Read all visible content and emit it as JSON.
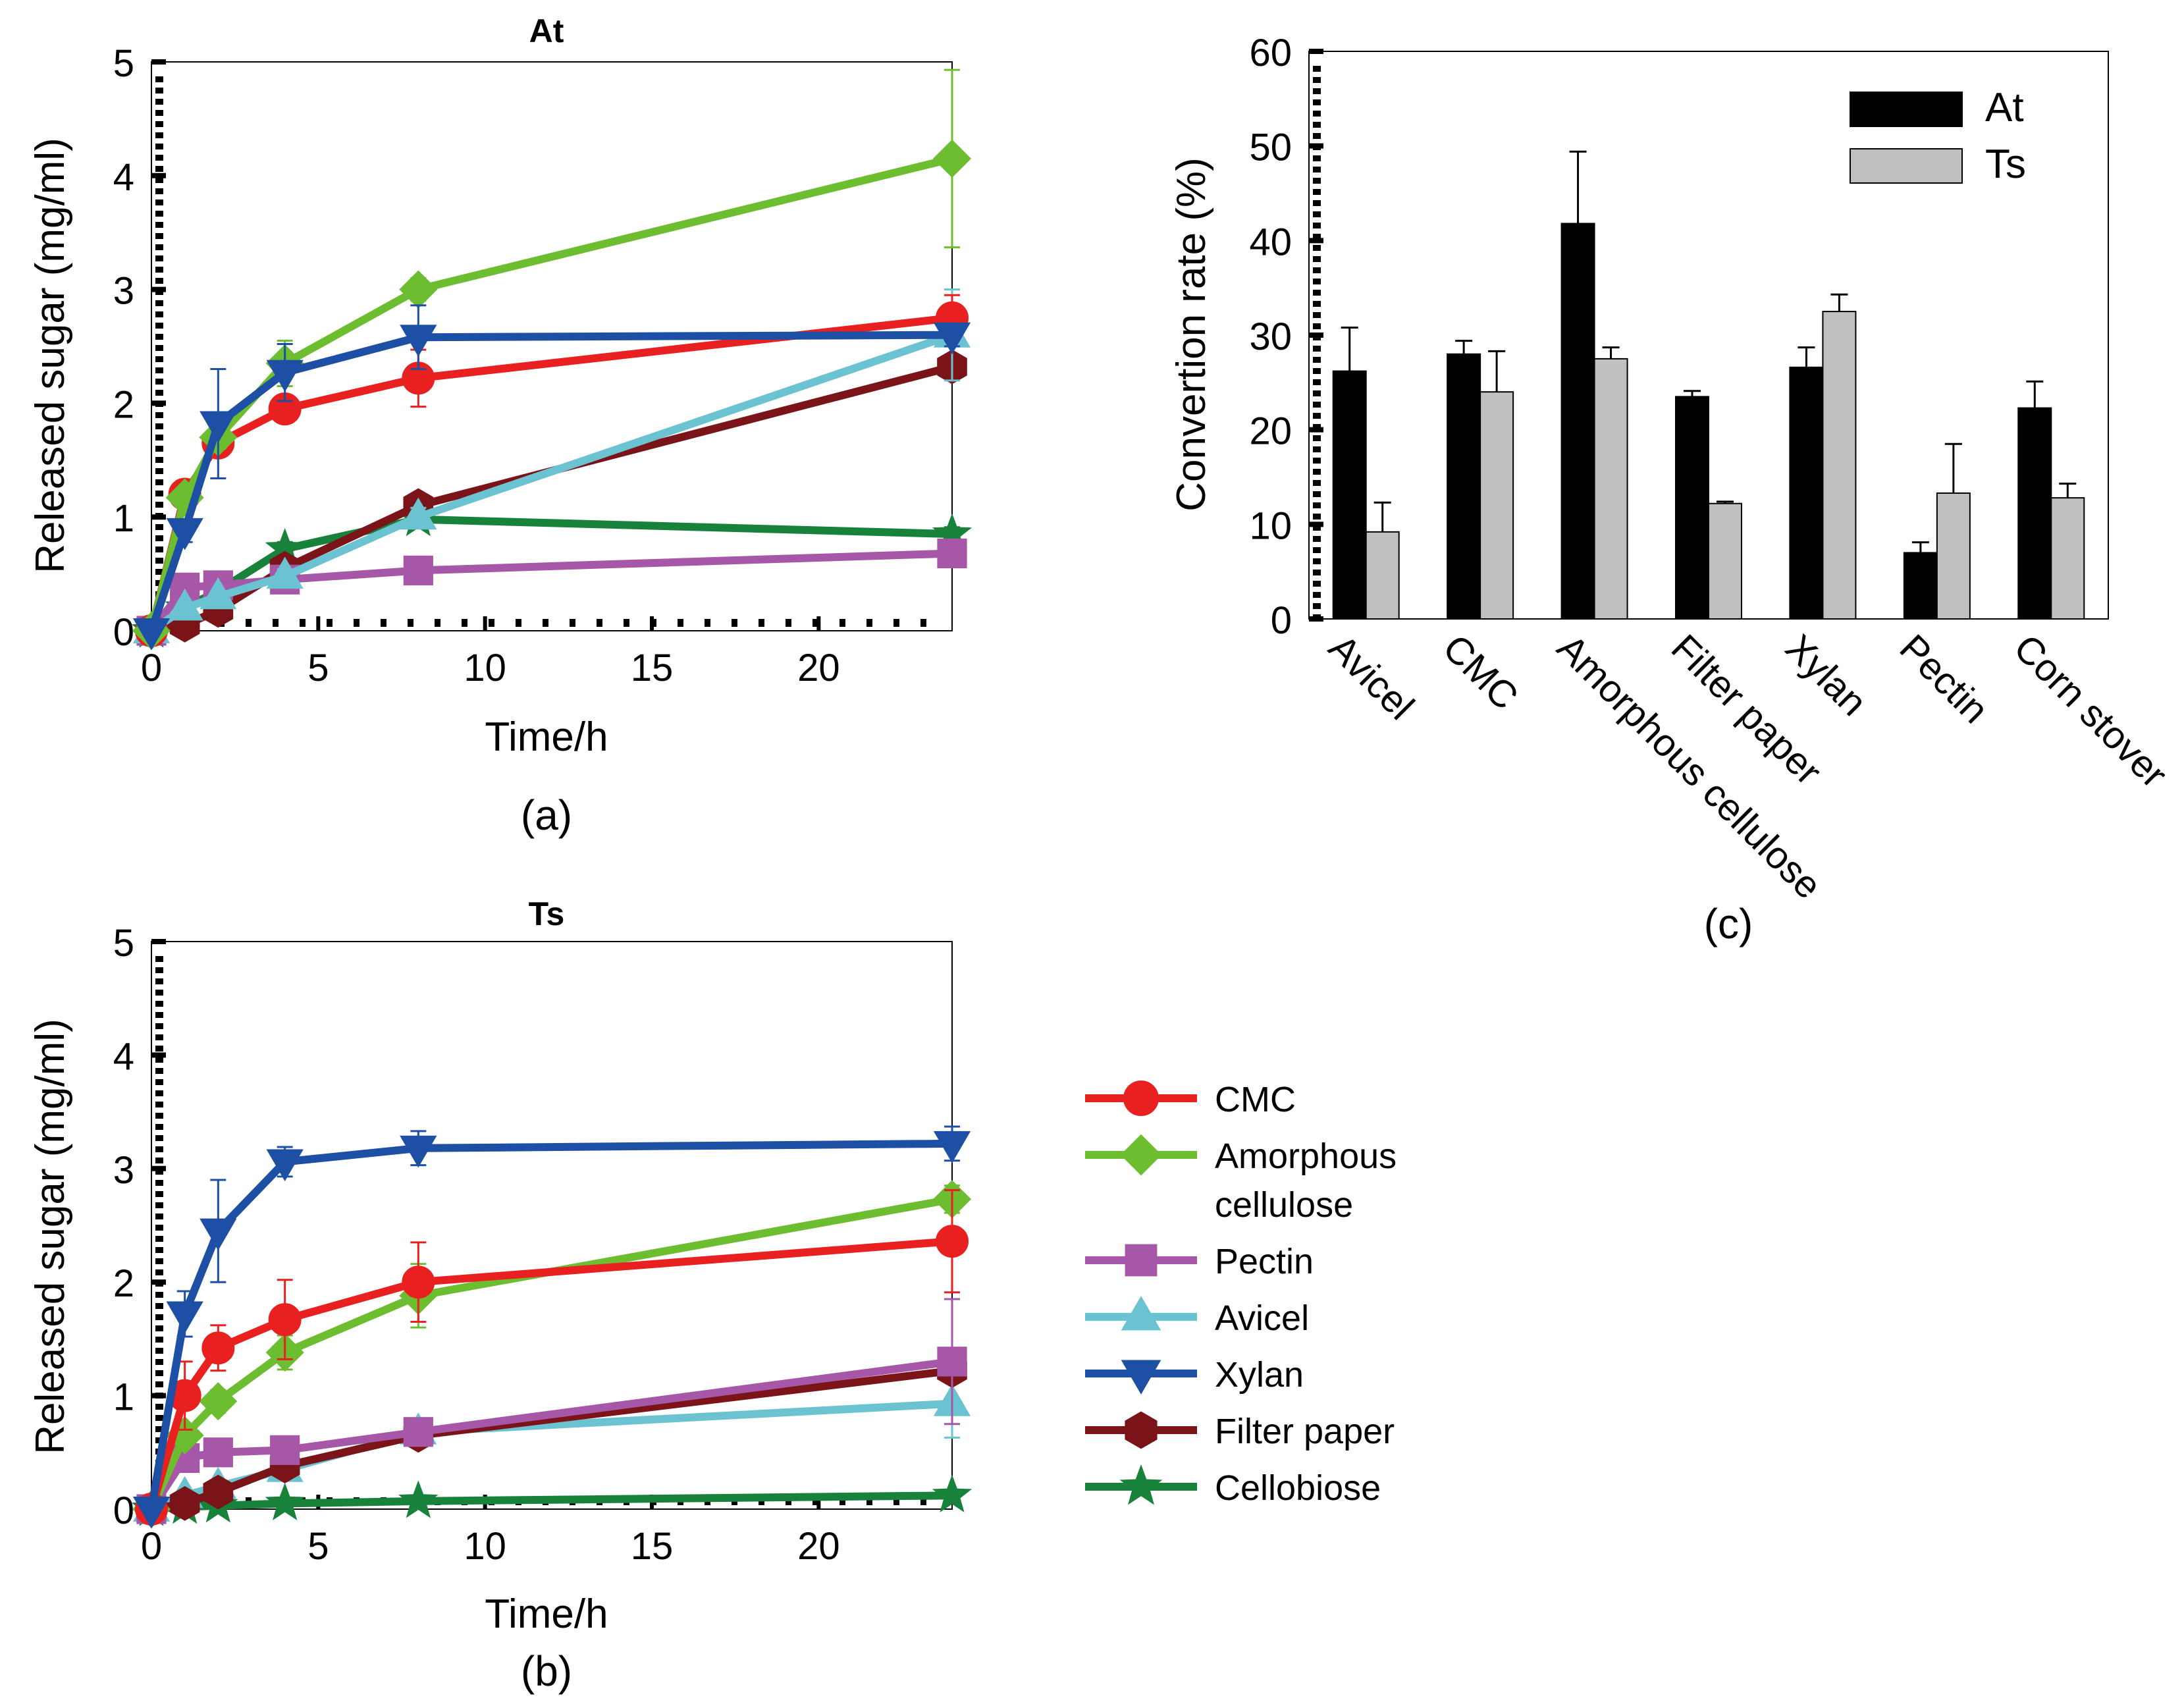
{
  "series_styles": [
    {
      "name": "CMC",
      "color": "#e8201f",
      "marker": "circle"
    },
    {
      "name": "Amorphous cellulose",
      "color": "#6cbd2f",
      "marker": "diamond"
    },
    {
      "name": "Pectin",
      "color": "#a657a8",
      "marker": "square"
    },
    {
      "name": "Avicel",
      "color": "#6bc3d2",
      "marker": "triangle-up"
    },
    {
      "name": "Xylan",
      "color": "#1d4fa5",
      "marker": "triangle-down"
    },
    {
      "name": "Filter paper",
      "color": "#7b1418",
      "marker": "hexagon"
    },
    {
      "name": "Cellobiose",
      "color": "#18813a",
      "marker": "star"
    }
  ],
  "legend": {
    "items": [
      {
        "series": "CMC",
        "lines": [
          "CMC"
        ]
      },
      {
        "series": "Amorphous cellulose",
        "lines": [
          "Amorphous",
          "cellulose"
        ]
      },
      {
        "series": "Pectin",
        "lines": [
          "Pectin"
        ]
      },
      {
        "series": "Avicel",
        "lines": [
          "Avicel"
        ]
      },
      {
        "series": "Xylan",
        "lines": [
          "Xylan"
        ]
      },
      {
        "series": "Filter paper",
        "lines": [
          "Filter paper"
        ]
      },
      {
        "series": "Cellobiose",
        "lines": [
          "Cellobiose"
        ]
      }
    ]
  },
  "chart_data": [
    {
      "id": "a",
      "type": "line",
      "title": "At",
      "panel_label": "(a)",
      "xlabel": "Time/h",
      "ylabel": "Released sugar (mg/ml)",
      "xlim": [
        0,
        24
      ],
      "ylim": [
        0,
        5
      ],
      "xticks": [
        0,
        5,
        10,
        15,
        20
      ],
      "yticks": [
        0,
        1,
        2,
        3,
        4,
        5
      ],
      "x": [
        0,
        1,
        2,
        4,
        8,
        24
      ],
      "series": [
        {
          "name": "Cellobiose",
          "values": [
            0,
            0.2,
            0.35,
            0.72,
            0.98,
            0.85
          ],
          "errors": [
            0.03,
            0.05,
            0.05,
            0.06,
            0.06,
            0.06
          ]
        },
        {
          "name": "Filter paper",
          "values": [
            0,
            0.05,
            0.18,
            0.55,
            1.1,
            2.32
          ],
          "errors": [
            0.03,
            0.04,
            0.05,
            0.06,
            0.08,
            0.1
          ]
        },
        {
          "name": "Pectin",
          "values": [
            0,
            0.38,
            0.4,
            0.45,
            0.53,
            0.68
          ],
          "errors": [
            0.03,
            0.05,
            0.05,
            0.05,
            0.05,
            0.06
          ]
        },
        {
          "name": "Avicel",
          "values": [
            0,
            0.2,
            0.3,
            0.48,
            1.0,
            2.6
          ],
          "errors": [
            0.03,
            0.05,
            0.05,
            0.06,
            0.08,
            0.4
          ]
        },
        {
          "name": "CMC",
          "values": [
            0,
            1.2,
            1.65,
            1.95,
            2.22,
            2.75
          ],
          "errors": [
            0.05,
            0.08,
            0.1,
            0.1,
            0.25,
            0.2
          ]
        },
        {
          "name": "Amorphous cellulose",
          "values": [
            0,
            1.17,
            1.7,
            2.35,
            3.0,
            4.15
          ],
          "errors": [
            0.05,
            0.08,
            0.1,
            0.2,
            0.1,
            0.78
          ]
        },
        {
          "name": "Xylan",
          "values": [
            0,
            0.88,
            1.82,
            2.27,
            2.58,
            2.6
          ],
          "errors": [
            0.05,
            0.1,
            0.48,
            0.25,
            0.28,
            0.1
          ]
        }
      ]
    },
    {
      "id": "b",
      "type": "line",
      "title": "Ts",
      "panel_label": "(b)",
      "xlabel": "Time/h",
      "ylabel": "Released sugar (mg/ml)",
      "xlim": [
        0,
        24
      ],
      "ylim": [
        0,
        5
      ],
      "xticks": [
        0,
        5,
        10,
        15,
        20
      ],
      "yticks": [
        0,
        1,
        2,
        3,
        4,
        5
      ],
      "x": [
        0,
        1,
        2,
        4,
        8,
        24
      ],
      "series": [
        {
          "name": "Cellobiose",
          "values": [
            0,
            0.02,
            0.03,
            0.05,
            0.07,
            0.12
          ],
          "errors": [
            0.02,
            0.02,
            0.02,
            0.03,
            0.03,
            0.05
          ]
        },
        {
          "name": "Avicel",
          "values": [
            0,
            0.12,
            0.2,
            0.35,
            0.68,
            0.93
          ],
          "errors": [
            0.03,
            0.05,
            0.05,
            0.06,
            0.07,
            0.3
          ]
        },
        {
          "name": "Filter paper",
          "values": [
            0,
            0.05,
            0.15,
            0.38,
            0.65,
            1.22
          ],
          "errors": [
            0.03,
            0.04,
            0.05,
            0.06,
            0.08,
            0.1
          ]
        },
        {
          "name": "Pectin",
          "values": [
            0,
            0.45,
            0.5,
            0.52,
            0.68,
            1.3
          ],
          "errors": [
            0.03,
            0.05,
            0.05,
            0.05,
            0.06,
            0.55
          ]
        },
        {
          "name": "Amorphous cellulose",
          "values": [
            0,
            0.65,
            0.95,
            1.38,
            1.88,
            2.73
          ],
          "errors": [
            0.03,
            0.06,
            0.1,
            0.15,
            0.28,
            0.12
          ]
        },
        {
          "name": "CMC",
          "values": [
            0,
            1.0,
            1.42,
            1.67,
            2.0,
            2.36
          ],
          "errors": [
            0.03,
            0.3,
            0.2,
            0.35,
            0.35,
            0.45
          ]
        },
        {
          "name": "Xylan",
          "values": [
            0,
            1.72,
            2.45,
            3.06,
            3.18,
            3.22
          ],
          "errors": [
            0.03,
            0.2,
            0.45,
            0.13,
            0.15,
            0.15
          ]
        }
      ]
    },
    {
      "id": "c",
      "type": "bar",
      "panel_label": "(c)",
      "ylabel": "Convertion rate (%)",
      "xlabel": "",
      "ylim": [
        0,
        60
      ],
      "yticks": [
        0,
        10,
        20,
        30,
        40,
        50,
        60
      ],
      "categories": [
        "Avicel",
        "CMC",
        "Amorphous cellulose",
        "Filter paper",
        "Xylan",
        "Pectin",
        "Corn stover"
      ],
      "series": [
        {
          "name": "At",
          "color": "#000000",
          "values": [
            26.2,
            28.0,
            41.8,
            23.5,
            26.6,
            7.0,
            22.3
          ],
          "errors": [
            4.6,
            1.4,
            7.6,
            0.6,
            2.1,
            1.1,
            2.8
          ]
        },
        {
          "name": "Ts",
          "color": "#c0c0c0",
          "values": [
            9.2,
            24.0,
            27.5,
            12.2,
            32.5,
            13.3,
            12.8
          ],
          "errors": [
            3.1,
            4.3,
            1.2,
            0.2,
            1.8,
            5.2,
            1.5
          ]
        }
      ],
      "legend_position": "top-right"
    }
  ]
}
